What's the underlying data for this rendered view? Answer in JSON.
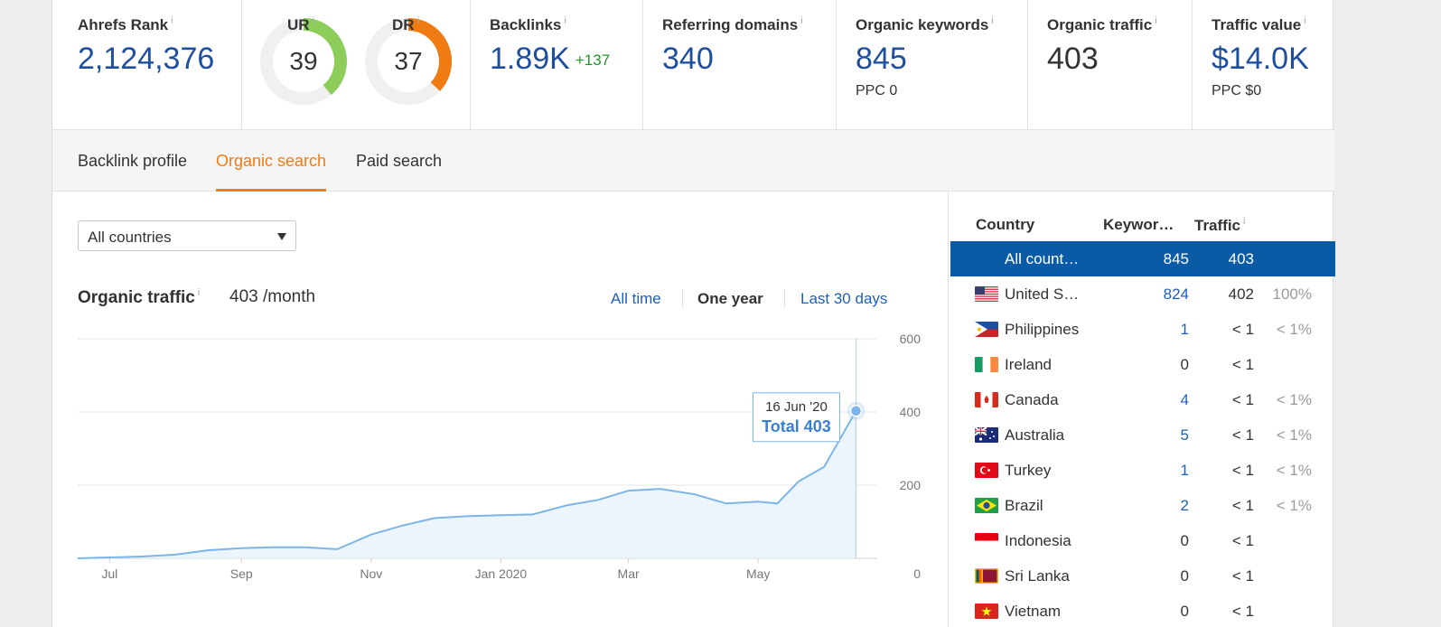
{
  "metrics": {
    "ahrefs_rank": {
      "label": "Ahrefs Rank",
      "info": "i",
      "value": "2,124,376"
    },
    "ur": {
      "label": "UR",
      "info": "i",
      "value": "39",
      "fraction": 0.39,
      "color": "#8dce5b"
    },
    "dr": {
      "label": "DR",
      "info": "i",
      "value": "37",
      "fraction": 0.37,
      "color": "#f07b12"
    },
    "backlinks": {
      "label": "Backlinks",
      "info": "i",
      "value": "1.89K",
      "delta": "+137"
    },
    "referring_domains": {
      "label": "Referring domains",
      "info": "i",
      "value": "340"
    },
    "organic_keywords": {
      "label": "Organic keywords",
      "info": "i",
      "value": "845",
      "sub": "PPC 0"
    },
    "organic_traffic": {
      "label": "Organic traffic",
      "info": "i",
      "value": "403"
    },
    "traffic_value": {
      "label": "Traffic value",
      "info": "i",
      "value": "$14.0K",
      "sub": "PPC $0"
    }
  },
  "tabs": [
    {
      "label": "Backlink profile",
      "active": false
    },
    {
      "label": "Organic search",
      "active": true
    },
    {
      "label": "Paid search",
      "active": false
    }
  ],
  "filter": {
    "selected": "All countries"
  },
  "traffic_header": {
    "title": "Organic traffic",
    "info": "i",
    "value": "403 /month"
  },
  "ranges": [
    {
      "label": "All time",
      "active": false
    },
    {
      "label": "One year",
      "active": true
    },
    {
      "label": "Last 30 days",
      "active": false
    }
  ],
  "chart_data": {
    "type": "area",
    "x_ticks": [
      "Jul",
      "Sep",
      "Nov",
      "Jan 2020",
      "Mar",
      "May"
    ],
    "y_ticks": [
      600,
      400,
      200,
      0
    ],
    "ylim": [
      0,
      600
    ],
    "grid": true,
    "series": [
      {
        "color": "#7cb5e8",
        "x": [
          "2019-06-16",
          "2019-07-16",
          "2019-08-01",
          "2019-08-16",
          "2019-09-01",
          "2019-09-16",
          "2019-10-01",
          "2019-10-16",
          "2019-11-01",
          "2019-11-16",
          "2019-12-01",
          "2019-12-16",
          "2020-01-01",
          "2020-01-16",
          "2020-02-01",
          "2020-02-16",
          "2020-03-01",
          "2020-03-16",
          "2020-04-01",
          "2020-04-16",
          "2020-05-01",
          "2020-05-10",
          "2020-05-20",
          "2020-06-01",
          "2020-06-16"
        ],
        "values": [
          0,
          5,
          10,
          22,
          28,
          30,
          30,
          25,
          65,
          90,
          110,
          115,
          118,
          120,
          145,
          160,
          185,
          190,
          175,
          150,
          155,
          150,
          210,
          250,
          403
        ]
      }
    ],
    "tooltip": {
      "date": "16 Jun '20",
      "label": "Total 403"
    }
  },
  "country_table": {
    "headers": {
      "country": "Country",
      "keywords": "Keywor…",
      "traffic": "Traffic",
      "traffic_info": "i"
    },
    "rows": [
      {
        "country": "All count…",
        "keywords": "845",
        "traffic": "403",
        "share": "",
        "selected": true,
        "flag": "none"
      },
      {
        "country": "United S…",
        "keywords": "824",
        "traffic": "402",
        "share": "100%",
        "flag": "us"
      },
      {
        "country": "Philippines",
        "keywords": "1",
        "traffic": "< 1",
        "share": "< 1%",
        "flag": "ph"
      },
      {
        "country": "Ireland",
        "keywords": "0",
        "traffic": "< 1",
        "share": "",
        "flag": "ie"
      },
      {
        "country": "Canada",
        "keywords": "4",
        "traffic": "< 1",
        "share": "< 1%",
        "flag": "ca"
      },
      {
        "country": "Australia",
        "keywords": "5",
        "traffic": "< 1",
        "share": "< 1%",
        "flag": "au"
      },
      {
        "country": "Turkey",
        "keywords": "1",
        "traffic": "< 1",
        "share": "< 1%",
        "flag": "tr"
      },
      {
        "country": "Brazil",
        "keywords": "2",
        "traffic": "< 1",
        "share": "< 1%",
        "flag": "br"
      },
      {
        "country": "Indonesia",
        "keywords": "0",
        "traffic": "< 1",
        "share": "",
        "flag": "id"
      },
      {
        "country": "Sri Lanka",
        "keywords": "0",
        "traffic": "< 1",
        "share": "",
        "flag": "lk"
      },
      {
        "country": "Vietnam",
        "keywords": "0",
        "traffic": "< 1",
        "share": "",
        "flag": "vn"
      }
    ]
  }
}
